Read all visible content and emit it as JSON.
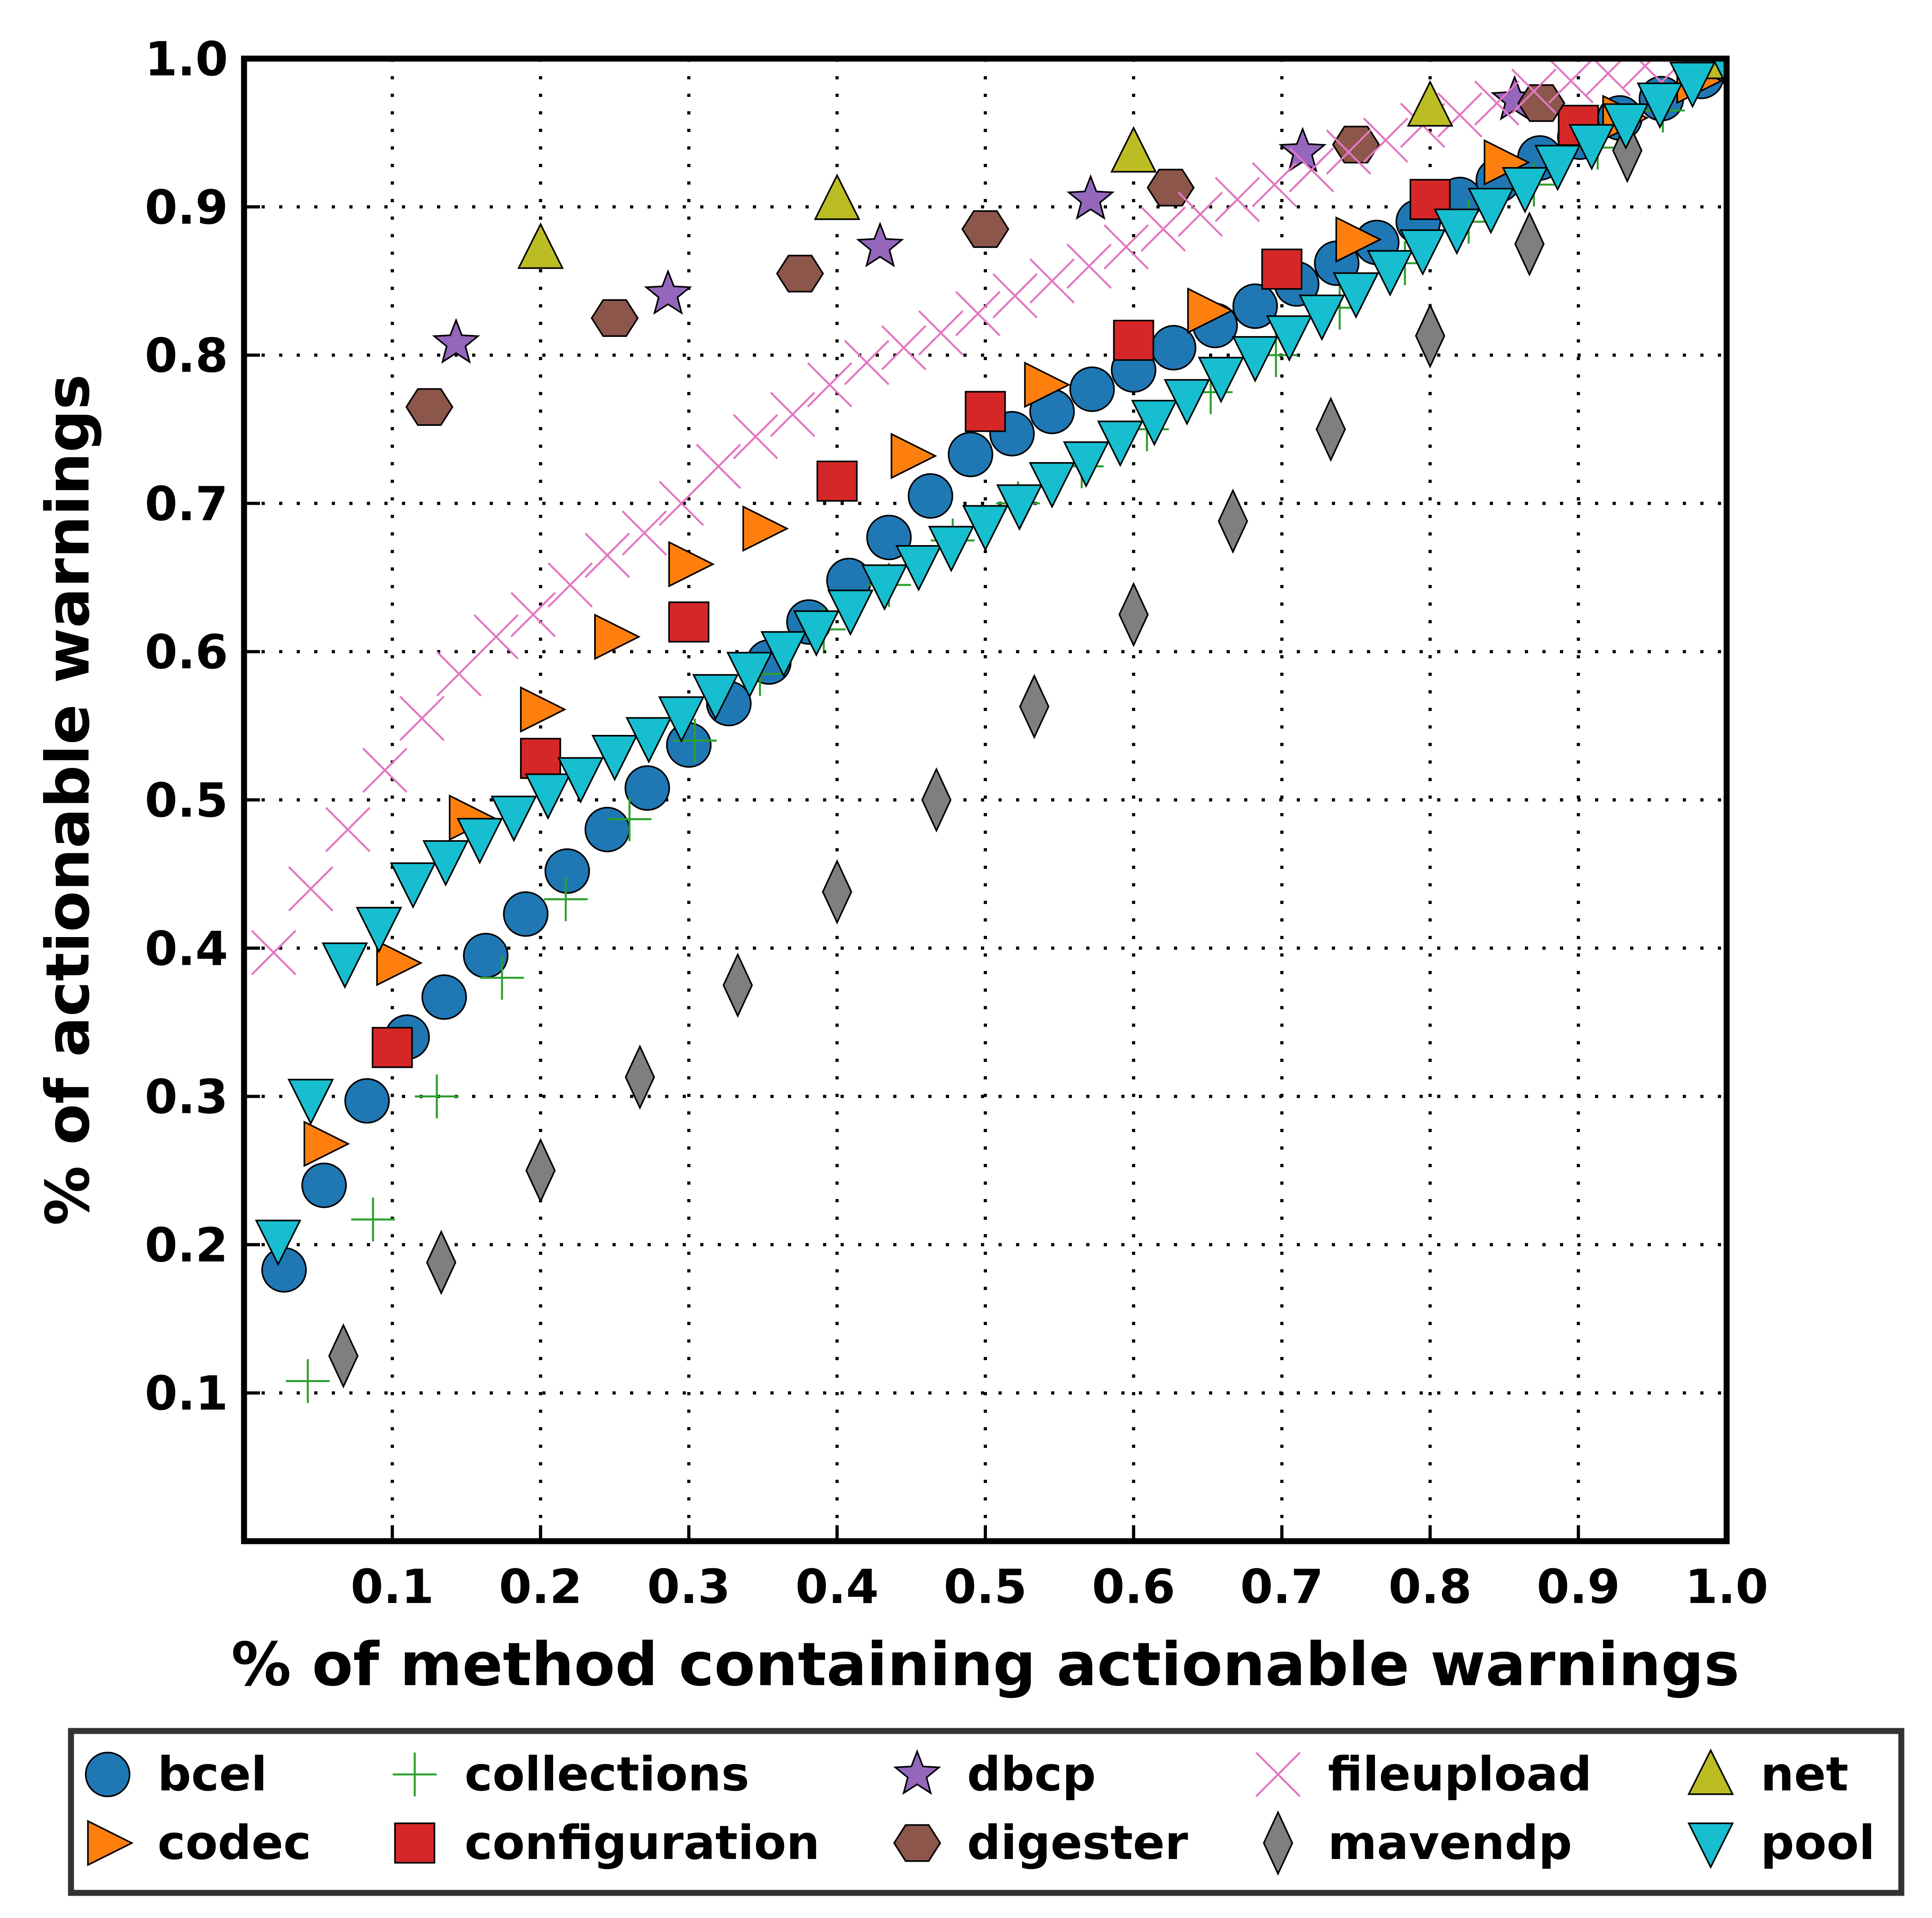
{
  "chart_data": {
    "type": "scatter",
    "title": "",
    "xlabel": "% of method containing actionable warnings",
    "ylabel": "% of actionable warnings",
    "xlim": [
      0.0,
      1.0
    ],
    "ylim": [
      0.0,
      1.0
    ],
    "x_ticks": [
      0.1,
      0.2,
      0.3,
      0.4,
      0.5,
      0.6,
      0.7,
      0.8,
      0.9,
      1.0
    ],
    "y_ticks": [
      0.1,
      0.2,
      0.3,
      0.4,
      0.5,
      0.6,
      0.7,
      0.8,
      0.9,
      1.0
    ],
    "x_tick_labels": [
      "0.1",
      "0.2",
      "0.3",
      "0.4",
      "0.5",
      "0.6",
      "0.7",
      "0.8",
      "0.9",
      "1.0"
    ],
    "y_tick_labels": [
      "0.1",
      "0.2",
      "0.3",
      "0.4",
      "0.5",
      "0.6",
      "0.7",
      "0.8",
      "0.9",
      "1.0"
    ],
    "grid": true,
    "legend_position": "bottom",
    "series": [
      {
        "name": "bcel",
        "marker": "circle",
        "color": "#1f77b4",
        "points": [
          [
            0.027,
            0.183
          ],
          [
            0.054,
            0.24
          ],
          [
            0.083,
            0.297
          ],
          [
            0.11,
            0.34
          ],
          [
            0.135,
            0.367
          ],
          [
            0.163,
            0.395
          ],
          [
            0.19,
            0.423
          ],
          [
            0.218,
            0.452
          ],
          [
            0.245,
            0.48
          ],
          [
            0.272,
            0.508
          ],
          [
            0.3,
            0.537
          ],
          [
            0.327,
            0.565
          ],
          [
            0.354,
            0.593
          ],
          [
            0.381,
            0.62
          ],
          [
            0.408,
            0.648
          ],
          [
            0.435,
            0.677
          ],
          [
            0.463,
            0.705
          ],
          [
            0.49,
            0.733
          ],
          [
            0.518,
            0.747
          ],
          [
            0.545,
            0.762
          ],
          [
            0.572,
            0.777
          ],
          [
            0.6,
            0.79
          ],
          [
            0.627,
            0.805
          ],
          [
            0.655,
            0.82
          ],
          [
            0.682,
            0.833
          ],
          [
            0.71,
            0.848
          ],
          [
            0.737,
            0.862
          ],
          [
            0.764,
            0.876
          ],
          [
            0.792,
            0.89
          ],
          [
            0.82,
            0.905
          ],
          [
            0.846,
            0.918
          ],
          [
            0.874,
            0.933
          ],
          [
            0.901,
            0.947
          ],
          [
            0.928,
            0.96
          ],
          [
            0.956,
            0.973
          ],
          [
            0.983,
            0.988
          ]
        ]
      },
      {
        "name": "codec",
        "marker": "triangle-right",
        "color": "#ff7f0e",
        "points": [
          [
            0.054,
            0.268
          ],
          [
            0.103,
            0.39
          ],
          [
            0.152,
            0.488
          ],
          [
            0.2,
            0.561
          ],
          [
            0.25,
            0.61
          ],
          [
            0.3,
            0.659
          ],
          [
            0.35,
            0.683
          ],
          [
            0.45,
            0.732
          ],
          [
            0.54,
            0.78
          ],
          [
            0.65,
            0.83
          ],
          [
            0.75,
            0.878
          ],
          [
            0.85,
            0.93
          ],
          [
            0.93,
            0.96
          ],
          [
            0.98,
            0.985
          ]
        ]
      },
      {
        "name": "collections",
        "marker": "plus",
        "color": "#2ca02c",
        "points": [
          [
            0.043,
            0.108
          ],
          [
            0.087,
            0.217
          ],
          [
            0.13,
            0.3
          ],
          [
            0.174,
            0.38
          ],
          [
            0.217,
            0.433
          ],
          [
            0.26,
            0.487
          ],
          [
            0.304,
            0.54
          ],
          [
            0.348,
            0.585
          ],
          [
            0.391,
            0.615
          ],
          [
            0.435,
            0.645
          ],
          [
            0.478,
            0.675
          ],
          [
            0.522,
            0.7
          ],
          [
            0.565,
            0.725
          ],
          [
            0.609,
            0.75
          ],
          [
            0.652,
            0.775
          ],
          [
            0.696,
            0.8
          ],
          [
            0.739,
            0.832
          ],
          [
            0.783,
            0.862
          ],
          [
            0.826,
            0.89
          ],
          [
            0.87,
            0.915
          ],
          [
            0.913,
            0.94
          ],
          [
            0.957,
            0.965
          ],
          [
            1.0,
            0.99
          ]
        ]
      },
      {
        "name": "configuration",
        "marker": "square",
        "color": "#d62728",
        "points": [
          [
            0.1,
            0.333
          ],
          [
            0.2,
            0.528
          ],
          [
            0.3,
            0.62
          ],
          [
            0.4,
            0.715
          ],
          [
            0.5,
            0.762
          ],
          [
            0.6,
            0.81
          ],
          [
            0.7,
            0.858
          ],
          [
            0.8,
            0.905
          ],
          [
            0.9,
            0.955
          ]
        ]
      },
      {
        "name": "dbcp",
        "marker": "star",
        "color": "#9467bd",
        "points": [
          [
            0.143,
            0.808
          ],
          [
            0.286,
            0.841
          ],
          [
            0.429,
            0.873
          ],
          [
            0.571,
            0.905
          ],
          [
            0.714,
            0.937
          ],
          [
            0.857,
            0.972
          ]
        ]
      },
      {
        "name": "digester",
        "marker": "hexagon",
        "color": "#8c564b",
        "points": [
          [
            0.125,
            0.765
          ],
          [
            0.25,
            0.825
          ],
          [
            0.375,
            0.855
          ],
          [
            0.5,
            0.885
          ],
          [
            0.625,
            0.913
          ],
          [
            0.75,
            0.942
          ],
          [
            0.875,
            0.97
          ]
        ]
      },
      {
        "name": "fileupload",
        "marker": "x",
        "color": "#e377c2",
        "points": [
          [
            0.02,
            0.397
          ],
          [
            0.045,
            0.44
          ],
          [
            0.07,
            0.48
          ],
          [
            0.095,
            0.52
          ],
          [
            0.12,
            0.555
          ],
          [
            0.145,
            0.585
          ],
          [
            0.17,
            0.61
          ],
          [
            0.195,
            0.625
          ],
          [
            0.22,
            0.645
          ],
          [
            0.245,
            0.665
          ],
          [
            0.27,
            0.68
          ],
          [
            0.295,
            0.7
          ],
          [
            0.32,
            0.725
          ],
          [
            0.345,
            0.745
          ],
          [
            0.37,
            0.76
          ],
          [
            0.395,
            0.78
          ],
          [
            0.42,
            0.795
          ],
          [
            0.445,
            0.805
          ],
          [
            0.47,
            0.815
          ],
          [
            0.495,
            0.828
          ],
          [
            0.52,
            0.84
          ],
          [
            0.545,
            0.85
          ],
          [
            0.57,
            0.86
          ],
          [
            0.595,
            0.873
          ],
          [
            0.62,
            0.885
          ],
          [
            0.645,
            0.895
          ],
          [
            0.67,
            0.905
          ],
          [
            0.695,
            0.915
          ],
          [
            0.72,
            0.925
          ],
          [
            0.745,
            0.937
          ],
          [
            0.77,
            0.945
          ],
          [
            0.795,
            0.955
          ],
          [
            0.82,
            0.962
          ],
          [
            0.845,
            0.97
          ],
          [
            0.87,
            0.978
          ],
          [
            0.895,
            0.985
          ],
          [
            0.92,
            0.99
          ],
          [
            0.945,
            0.995
          ],
          [
            0.97,
            0.998
          ]
        ]
      },
      {
        "name": "mavendp",
        "marker": "diamond",
        "color": "#7f7f7f",
        "points": [
          [
            0.067,
            0.125
          ],
          [
            0.133,
            0.188
          ],
          [
            0.2,
            0.25
          ],
          [
            0.267,
            0.313
          ],
          [
            0.333,
            0.375
          ],
          [
            0.4,
            0.438
          ],
          [
            0.467,
            0.5
          ],
          [
            0.533,
            0.563
          ],
          [
            0.6,
            0.625
          ],
          [
            0.667,
            0.688
          ],
          [
            0.733,
            0.75
          ],
          [
            0.8,
            0.813
          ],
          [
            0.867,
            0.875
          ],
          [
            0.933,
            0.938
          ],
          [
            1.0,
            1.0
          ]
        ]
      },
      {
        "name": "net",
        "marker": "triangle-up",
        "color": "#bcbd22",
        "points": [
          [
            0.2,
            0.872
          ],
          [
            0.4,
            0.905
          ],
          [
            0.6,
            0.937
          ],
          [
            0.8,
            0.968
          ],
          [
            1.0,
            1.0
          ]
        ]
      },
      {
        "name": "pool",
        "marker": "triangle-down",
        "color": "#17becf",
        "points": [
          [
            0.023,
            0.203
          ],
          [
            0.045,
            0.298
          ],
          [
            0.068,
            0.39
          ],
          [
            0.091,
            0.414
          ],
          [
            0.114,
            0.444
          ],
          [
            0.136,
            0.459
          ],
          [
            0.159,
            0.474
          ],
          [
            0.182,
            0.489
          ],
          [
            0.205,
            0.504
          ],
          [
            0.227,
            0.515
          ],
          [
            0.25,
            0.53
          ],
          [
            0.273,
            0.542
          ],
          [
            0.295,
            0.556
          ],
          [
            0.318,
            0.571
          ],
          [
            0.341,
            0.586
          ],
          [
            0.364,
            0.6
          ],
          [
            0.386,
            0.614
          ],
          [
            0.409,
            0.628
          ],
          [
            0.432,
            0.645
          ],
          [
            0.455,
            0.658
          ],
          [
            0.477,
            0.671
          ],
          [
            0.5,
            0.685
          ],
          [
            0.523,
            0.699
          ],
          [
            0.545,
            0.714
          ],
          [
            0.568,
            0.728
          ],
          [
            0.591,
            0.742
          ],
          [
            0.614,
            0.756
          ],
          [
            0.636,
            0.77
          ],
          [
            0.659,
            0.785
          ],
          [
            0.682,
            0.799
          ],
          [
            0.705,
            0.813
          ],
          [
            0.727,
            0.827
          ],
          [
            0.75,
            0.842
          ],
          [
            0.773,
            0.857
          ],
          [
            0.795,
            0.871
          ],
          [
            0.818,
            0.885
          ],
          [
            0.841,
            0.899
          ],
          [
            0.864,
            0.913
          ],
          [
            0.886,
            0.928
          ],
          [
            0.909,
            0.942
          ],
          [
            0.932,
            0.956
          ],
          [
            0.955,
            0.97
          ],
          [
            0.977,
            0.984
          ],
          [
            1.0,
            0.998
          ]
        ]
      }
    ]
  }
}
